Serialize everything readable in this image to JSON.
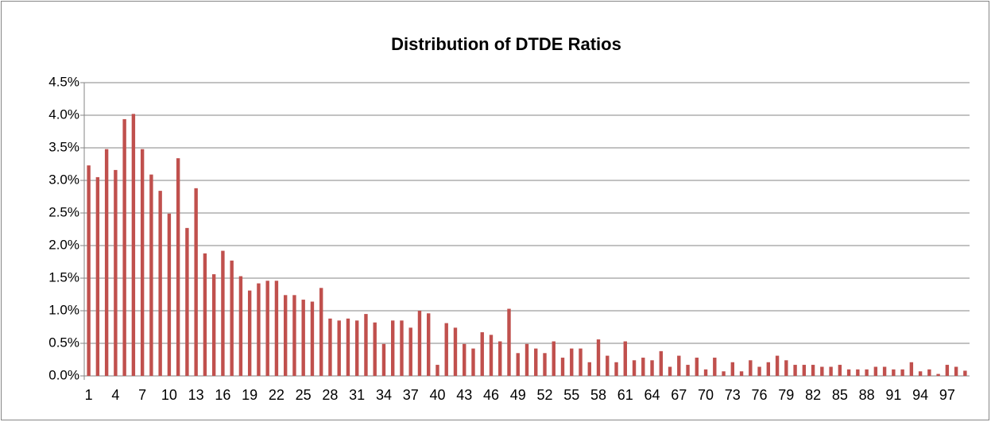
{
  "chart_data": {
    "type": "bar",
    "title": "Distribution of DTDE Ratios",
    "categories": [
      "1",
      null,
      null,
      "4",
      null,
      null,
      "7",
      null,
      null,
      "10",
      null,
      null,
      "13",
      null,
      null,
      "16",
      null,
      null,
      "19",
      null,
      null,
      "22",
      null,
      null,
      "25",
      null,
      null,
      "28",
      null,
      null,
      "31",
      null,
      null,
      "34",
      null,
      null,
      "37",
      null,
      null,
      "40",
      null,
      null,
      "43",
      null,
      null,
      "46",
      null,
      null,
      "49",
      null,
      null,
      "52",
      null,
      null,
      "55",
      null,
      null,
      "58",
      null,
      null,
      "61",
      null,
      null,
      "64",
      null,
      null,
      "67",
      null,
      null,
      "70",
      null,
      null,
      "73",
      null,
      null,
      "76",
      null,
      null,
      "79",
      null,
      null,
      "82",
      null,
      null,
      "85",
      null,
      null,
      "88",
      null,
      null,
      "91",
      null,
      null,
      "94",
      null,
      null,
      "97",
      null,
      null
    ],
    "values": [
      3.23,
      3.05,
      3.48,
      3.16,
      3.94,
      4.02,
      3.48,
      3.09,
      2.84,
      2.49,
      3.34,
      2.27,
      2.88,
      1.88,
      1.56,
      1.92,
      1.77,
      1.53,
      1.31,
      1.42,
      1.46,
      1.46,
      1.24,
      1.24,
      1.17,
      1.14,
      1.35,
      0.88,
      0.85,
      0.88,
      0.85,
      0.95,
      0.82,
      0.49,
      0.85,
      0.85,
      0.74,
      1.0,
      0.96,
      0.17,
      0.81,
      0.74,
      0.49,
      0.42,
      0.67,
      0.63,
      0.53,
      1.03,
      0.35,
      0.49,
      0.42,
      0.35,
      0.53,
      0.28,
      0.42,
      0.42,
      0.21,
      0.56,
      0.31,
      0.21,
      0.53,
      0.24,
      0.28,
      0.24,
      0.38,
      0.14,
      0.31,
      0.17,
      0.28,
      0.1,
      0.28,
      0.07,
      0.21,
      0.07,
      0.24,
      0.14,
      0.21,
      0.31,
      0.24,
      0.17,
      0.17,
      0.17,
      0.14,
      0.14,
      0.17,
      0.1,
      0.1,
      0.1,
      0.14,
      0.14,
      0.1,
      0.1,
      0.21,
      0.07,
      0.1,
      0.03,
      0.17,
      0.14,
      0.08
    ],
    "color": "#c0504d",
    "ylim": [
      0,
      4.5
    ],
    "yticks": [
      {
        "value": 0,
        "label": "0.0%"
      },
      {
        "value": 0.5,
        "label": "0.5%"
      },
      {
        "value": 1,
        "label": "1.0%"
      },
      {
        "value": 1.5,
        "label": "1.5%"
      },
      {
        "value": 2,
        "label": "2.0%"
      },
      {
        "value": 2.5,
        "label": "2.5%"
      },
      {
        "value": 3,
        "label": "3.0%"
      },
      {
        "value": 3.5,
        "label": "3.5%"
      },
      {
        "value": 4,
        "label": "4.0%"
      },
      {
        "value": 4.5,
        "label": "4.5%"
      }
    ],
    "grid": true
  }
}
